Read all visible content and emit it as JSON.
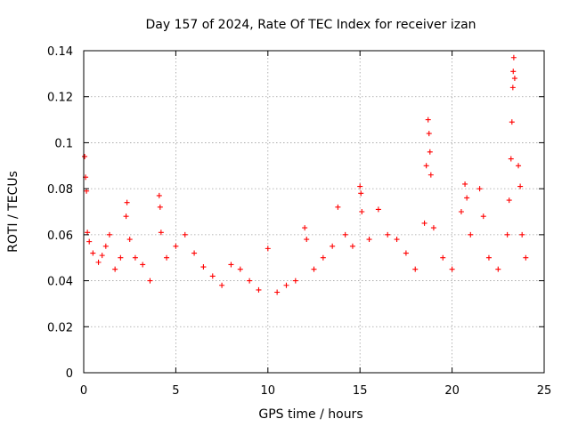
{
  "chart_data": {
    "type": "scatter",
    "title": "Day 157 of 2024, Rate Of TEC Index for receiver izan",
    "xlabel": "GPS time / hours",
    "ylabel": "ROTI / TECUs",
    "xlim": [
      0,
      25
    ],
    "ylim": [
      0,
      0.14
    ],
    "xticks": [
      0,
      5,
      10,
      15,
      20,
      25
    ],
    "xtick_labels": [
      "0",
      "5",
      "10",
      "15",
      "20",
      "25"
    ],
    "yticks": [
      0,
      0.02,
      0.04,
      0.06,
      0.08,
      0.1,
      0.12,
      0.14
    ],
    "ytick_labels": [
      "0",
      "0.02",
      "0.04",
      "0.06",
      "0.08",
      "0.1",
      "0.12",
      "0.14"
    ],
    "grid": true,
    "marker": "+",
    "series": [
      {
        "name": "ROTI",
        "color": "#ff0000",
        "points": [
          [
            0.05,
            0.094
          ],
          [
            0.1,
            0.085
          ],
          [
            0.15,
            0.079
          ],
          [
            0.2,
            0.061
          ],
          [
            0.3,
            0.057
          ],
          [
            0.5,
            0.052
          ],
          [
            0.8,
            0.048
          ],
          [
            1.0,
            0.051
          ],
          [
            1.2,
            0.055
          ],
          [
            1.4,
            0.06
          ],
          [
            1.7,
            0.045
          ],
          [
            2.0,
            0.05
          ],
          [
            2.3,
            0.068
          ],
          [
            2.35,
            0.074
          ],
          [
            2.5,
            0.058
          ],
          [
            2.8,
            0.05
          ],
          [
            3.2,
            0.047
          ],
          [
            3.6,
            0.04
          ],
          [
            4.1,
            0.077
          ],
          [
            4.15,
            0.072
          ],
          [
            4.2,
            0.061
          ],
          [
            4.5,
            0.05
          ],
          [
            5.0,
            0.055
          ],
          [
            5.5,
            0.06
          ],
          [
            6.0,
            0.052
          ],
          [
            6.5,
            0.046
          ],
          [
            7.0,
            0.042
          ],
          [
            7.5,
            0.038
          ],
          [
            8.0,
            0.047
          ],
          [
            8.5,
            0.045
          ],
          [
            9.0,
            0.04
          ],
          [
            9.5,
            0.036
          ],
          [
            10.0,
            0.054
          ],
          [
            10.5,
            0.035
          ],
          [
            11.0,
            0.038
          ],
          [
            11.5,
            0.04
          ],
          [
            12.0,
            0.063
          ],
          [
            12.1,
            0.058
          ],
          [
            12.5,
            0.045
          ],
          [
            13.0,
            0.05
          ],
          [
            13.5,
            0.055
          ],
          [
            13.8,
            0.072
          ],
          [
            14.2,
            0.06
          ],
          [
            14.6,
            0.055
          ],
          [
            15.0,
            0.081
          ],
          [
            15.05,
            0.078
          ],
          [
            15.1,
            0.07
          ],
          [
            15.5,
            0.058
          ],
          [
            16.0,
            0.071
          ],
          [
            16.5,
            0.06
          ],
          [
            17.0,
            0.058
          ],
          [
            17.5,
            0.052
          ],
          [
            18.0,
            0.045
          ],
          [
            18.5,
            0.065
          ],
          [
            18.6,
            0.09
          ],
          [
            18.7,
            0.11
          ],
          [
            18.75,
            0.104
          ],
          [
            18.8,
            0.096
          ],
          [
            18.85,
            0.086
          ],
          [
            19.0,
            0.063
          ],
          [
            19.5,
            0.05
          ],
          [
            20.0,
            0.045
          ],
          [
            20.5,
            0.07
          ],
          [
            20.7,
            0.082
          ],
          [
            20.8,
            0.076
          ],
          [
            21.0,
            0.06
          ],
          [
            21.5,
            0.08
          ],
          [
            21.7,
            0.068
          ],
          [
            22.0,
            0.05
          ],
          [
            22.5,
            0.045
          ],
          [
            23.0,
            0.06
          ],
          [
            23.1,
            0.075
          ],
          [
            23.2,
            0.093
          ],
          [
            23.25,
            0.109
          ],
          [
            23.3,
            0.124
          ],
          [
            23.32,
            0.131
          ],
          [
            23.35,
            0.137
          ],
          [
            23.4,
            0.128
          ],
          [
            23.6,
            0.09
          ],
          [
            23.7,
            0.081
          ],
          [
            23.8,
            0.06
          ],
          [
            24.0,
            0.05
          ]
        ]
      }
    ]
  }
}
